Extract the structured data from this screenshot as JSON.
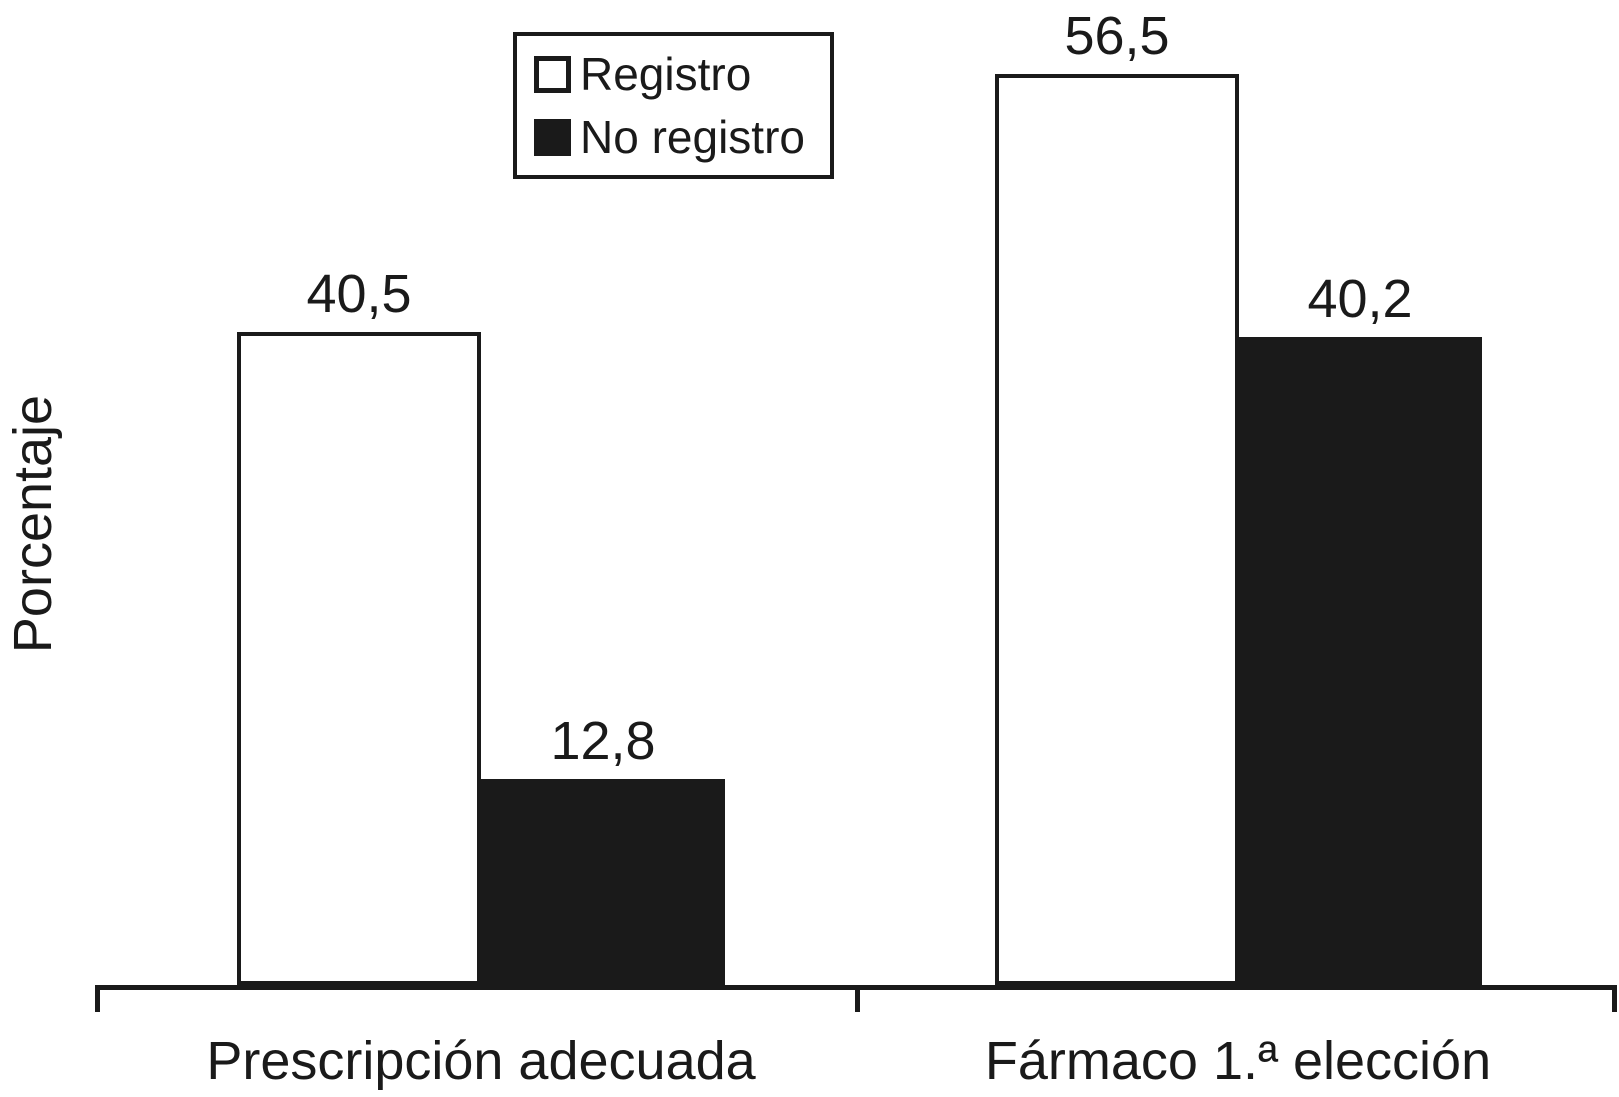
{
  "colors": {
    "foreground": "#1a1a1a",
    "background": "#ffffff",
    "bar_outline": "#1a1a1a",
    "bar_fill_registro": "#ffffff",
    "bar_fill_no_registro": "#1a1a1a"
  },
  "legend": {
    "items": [
      {
        "label": "Registro",
        "swatch": "white"
      },
      {
        "label": "No registro",
        "swatch": "black"
      }
    ]
  },
  "chart_data": {
    "type": "bar",
    "categories": [
      "Prescripción adecuada",
      "Fármaco 1.ª elección"
    ],
    "series": [
      {
        "name": "Registro",
        "fill": "#ffffff",
        "values": [
          40.5,
          56.5
        ],
        "labels": [
          "40,5",
          "56,5"
        ]
      },
      {
        "name": "No registro",
        "fill": "#1a1a1a",
        "values": [
          12.8,
          40.2
        ],
        "labels": [
          "12,8",
          "40,2"
        ]
      }
    ],
    "title": "",
    "xlabel": "",
    "ylabel": "Porcentaje",
    "ylim": [
      0,
      60
    ],
    "grid": false,
    "y_axis_ticks_visible": false,
    "legend_position": "top-left-inside",
    "value_label_decimal": "comma"
  }
}
